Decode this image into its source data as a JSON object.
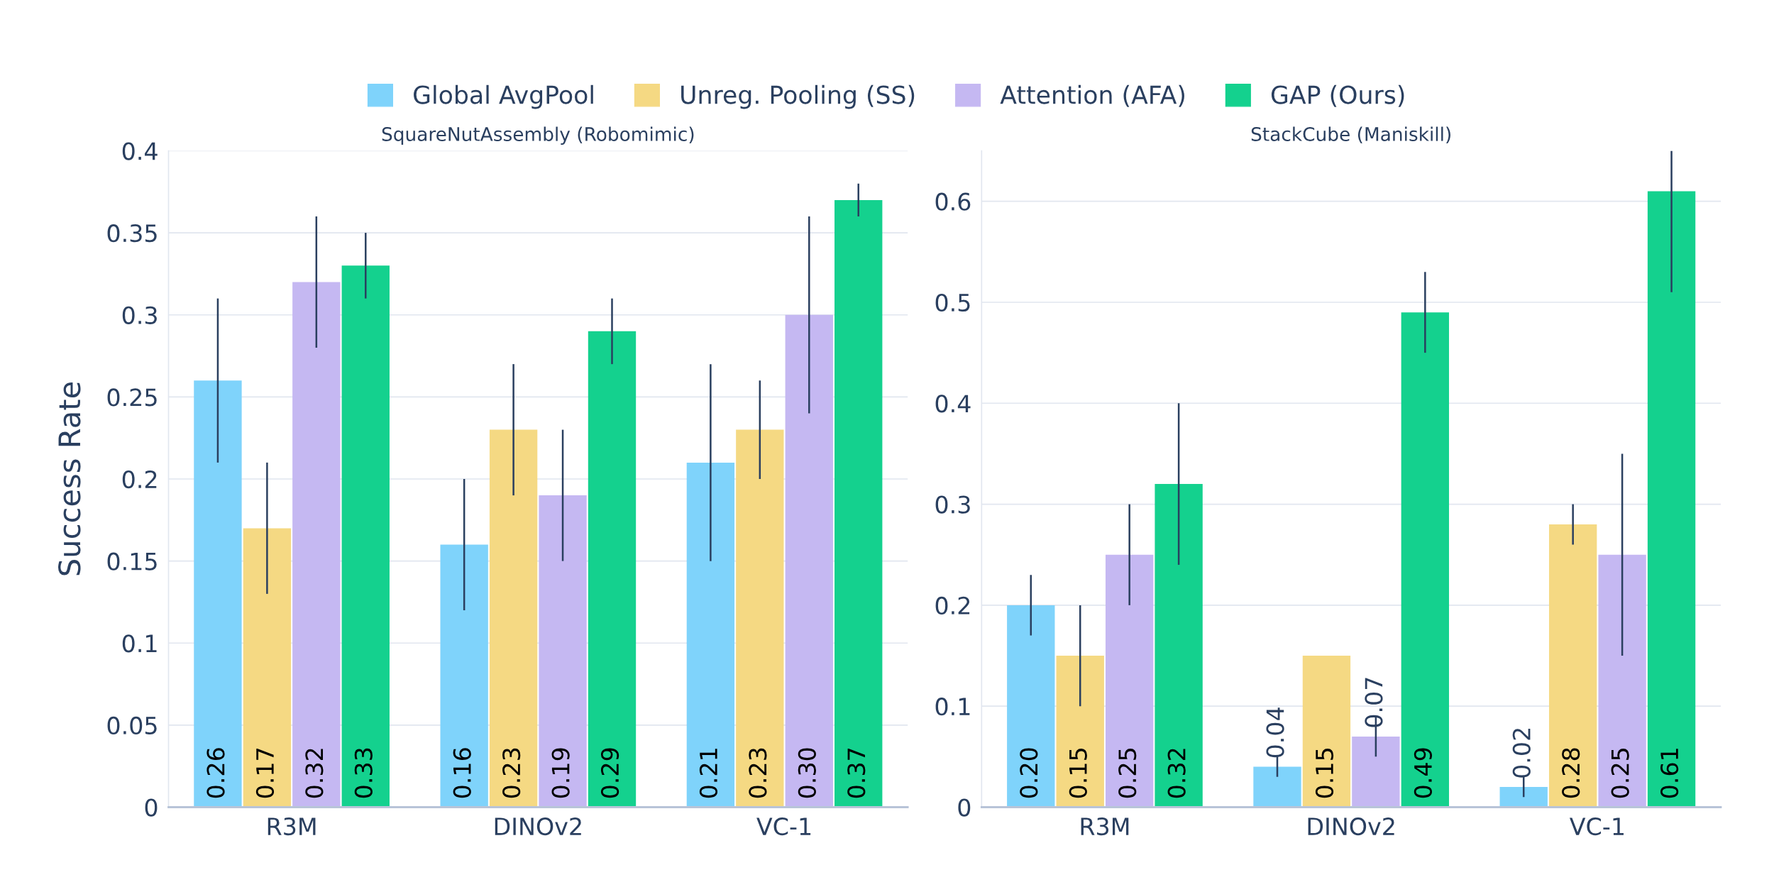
{
  "chart_data": [
    {
      "type": "bar",
      "title": "SquareNutAssembly (Robomimic)",
      "ylabel": "Success Rate",
      "categories": [
        "R3M",
        "DINOv2",
        "VC-1"
      ],
      "ylim": [
        0,
        0.4
      ],
      "yticks": [
        0,
        0.05,
        0.1,
        0.15,
        0.2,
        0.25,
        0.3,
        0.35,
        0.4
      ],
      "grid": "y",
      "legend": "top",
      "series": [
        {
          "name": "Global AvgPool",
          "color": "#7fd3fb",
          "values": [
            0.26,
            0.16,
            0.21
          ],
          "errors": [
            [
              0.21,
              0.31
            ],
            [
              0.12,
              0.2
            ],
            [
              0.15,
              0.27
            ]
          ],
          "value_labels": [
            "0.26",
            "0.16",
            "0.21"
          ]
        },
        {
          "name": "Unreg. Pooling (SS)",
          "color": "#f5d983",
          "values": [
            0.17,
            0.23,
            0.23
          ],
          "errors": [
            [
              0.13,
              0.21
            ],
            [
              0.19,
              0.27
            ],
            [
              0.2,
              0.26
            ]
          ],
          "value_labels": [
            "0.17",
            "0.23",
            "0.23"
          ]
        },
        {
          "name": "Attention (AFA)",
          "color": "#c5b8f2",
          "values": [
            0.32,
            0.19,
            0.3
          ],
          "errors": [
            [
              0.28,
              0.36
            ],
            [
              0.15,
              0.23
            ],
            [
              0.24,
              0.36
            ]
          ],
          "value_labels": [
            "0.32",
            "0.19",
            "0.30"
          ]
        },
        {
          "name": "GAP (Ours)",
          "color": "#14d18e",
          "values": [
            0.33,
            0.29,
            0.37
          ],
          "errors": [
            [
              0.31,
              0.35
            ],
            [
              0.27,
              0.31
            ],
            [
              0.36,
              0.38
            ]
          ],
          "value_labels": [
            "0.33",
            "0.29",
            "0.37"
          ]
        }
      ]
    },
    {
      "type": "bar",
      "title": "StackCube (Maniskill)",
      "categories": [
        "R3M",
        "DINOv2",
        "VC-1"
      ],
      "ylim": [
        0,
        0.65
      ],
      "yticks": [
        0,
        0.1,
        0.2,
        0.3,
        0.4,
        0.5,
        0.6
      ],
      "grid": "y",
      "series": [
        {
          "color": "#7fd3fb",
          "values": [
            0.2,
            0.04,
            0.02
          ],
          "errors": [
            [
              0.17,
              0.23
            ],
            [
              0.03,
              0.05
            ],
            [
              0.01,
              0.03
            ]
          ],
          "value_labels": [
            "0.20",
            "0.04",
            "0.02"
          ]
        },
        {
          "color": "#f5d983",
          "values": [
            0.15,
            0.15,
            0.28
          ],
          "errors": [
            [
              0.1,
              0.2
            ],
            null,
            [
              0.26,
              0.3
            ]
          ],
          "value_labels": [
            "0.15",
            "0.15",
            "0.28"
          ]
        },
        {
          "color": "#c5b8f2",
          "values": [
            0.25,
            0.07,
            0.25
          ],
          "errors": [
            [
              0.2,
              0.3
            ],
            [
              0.05,
              0.09
            ],
            [
              0.15,
              0.35
            ]
          ],
          "value_labels": [
            "0.25",
            "0.07",
            "0.25"
          ]
        },
        {
          "color": "#14d18e",
          "values": [
            0.32,
            0.49,
            0.61
          ],
          "errors": [
            [
              0.24,
              0.4
            ],
            [
              0.45,
              0.53
            ],
            [
              0.51,
              0.65
            ]
          ],
          "value_labels": [
            "0.32",
            "0.49",
            "0.61"
          ]
        }
      ]
    }
  ]
}
